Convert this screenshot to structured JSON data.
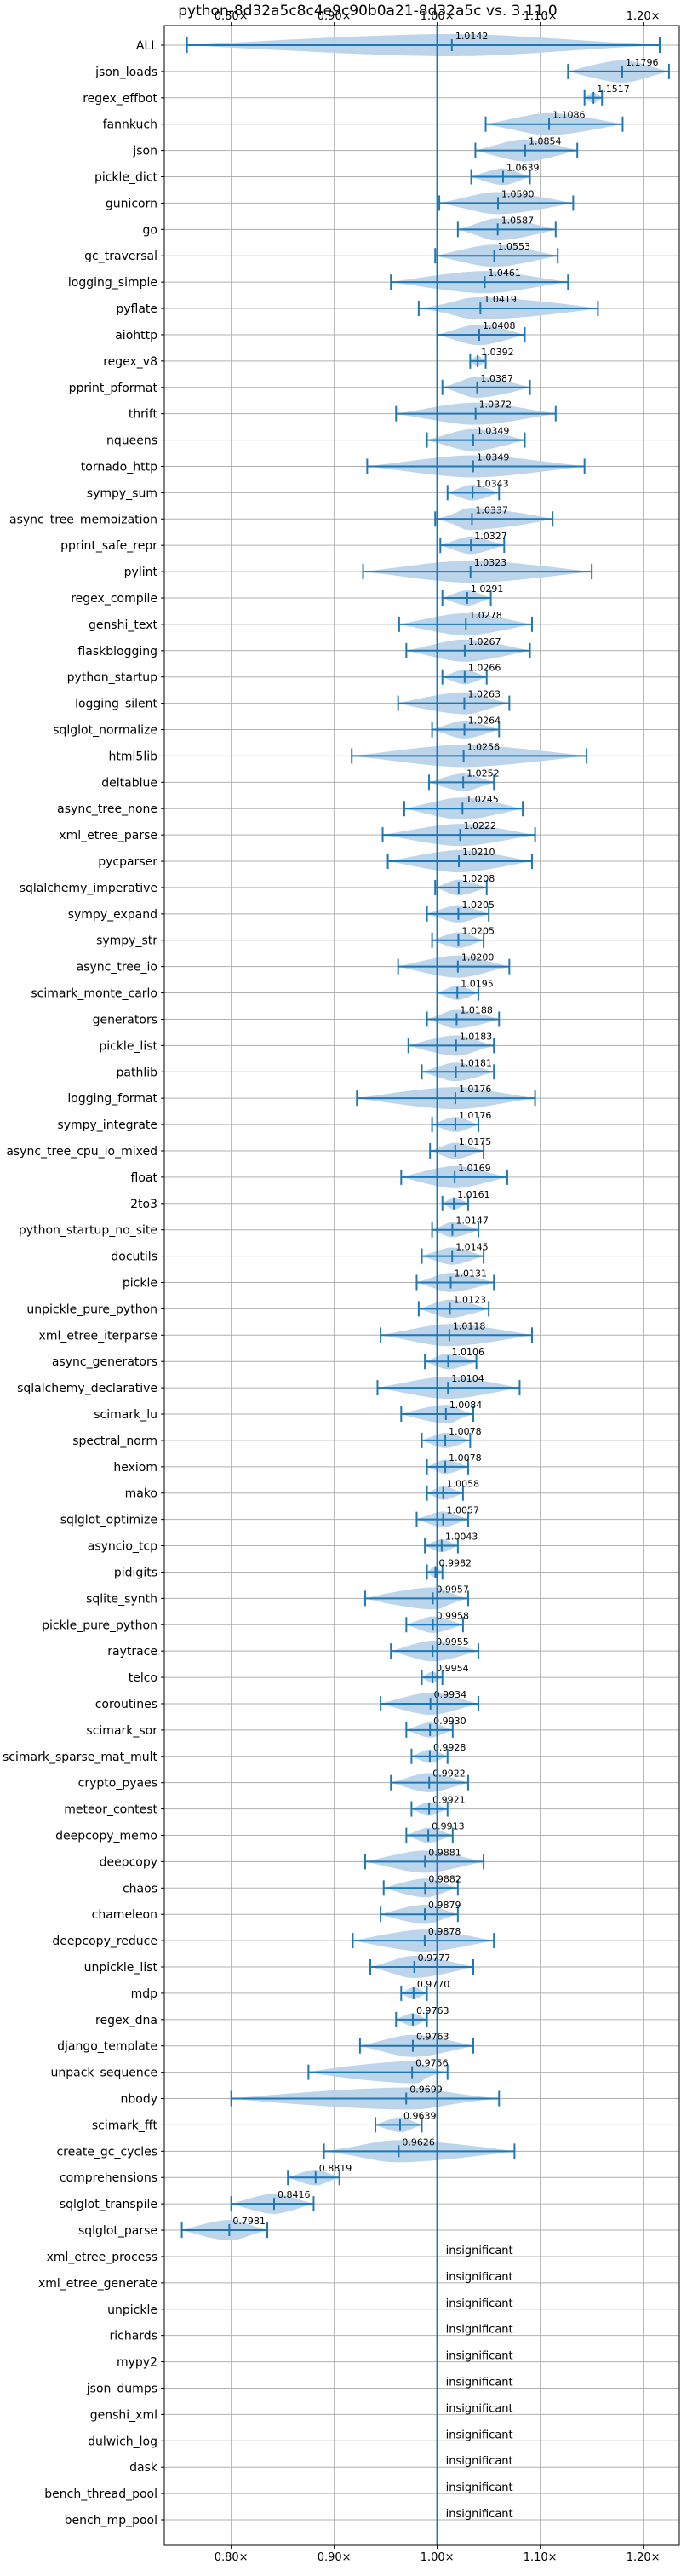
{
  "chart_data": {
    "type": "violin",
    "title": "python-8d32a5c8c4e9c90b0a21-8d32a5c vs. 3.11.0",
    "xlabel": "",
    "ylabel": "",
    "xlim": [
      0.735,
      1.235
    ],
    "x_ticks": [
      0.8,
      0.9,
      1.0,
      1.1,
      1.2
    ],
    "x_tick_labels": [
      "0.80×",
      "0.90×",
      "1.00×",
      "1.10×",
      "1.20×"
    ],
    "grid": true,
    "reference_line": 1.0,
    "colors": {
      "violin": "#b9d3ea",
      "whisker": "#1f77b4",
      "grid": "#b0b0b0",
      "text": "#000000"
    },
    "insignificant_label": "insignificant",
    "benchmarks": [
      {
        "name": "ALL",
        "mean": 1.0142,
        "min": 0.757,
        "max": 1.216,
        "label": "1.0142"
      },
      {
        "name": "json_loads",
        "mean": 1.1796,
        "min": 1.127,
        "max": 1.225,
        "label": "1.1796"
      },
      {
        "name": "regex_effbot",
        "mean": 1.1517,
        "min": 1.143,
        "max": 1.16,
        "label": "1.1517"
      },
      {
        "name": "fannkuch",
        "mean": 1.1086,
        "min": 1.047,
        "max": 1.18,
        "label": "1.1086"
      },
      {
        "name": "json",
        "mean": 1.0854,
        "min": 1.037,
        "max": 1.136,
        "label": "1.0854"
      },
      {
        "name": "pickle_dict",
        "mean": 1.0639,
        "min": 1.033,
        "max": 1.09,
        "label": "1.0639"
      },
      {
        "name": "gunicorn",
        "mean": 1.059,
        "min": 1.002,
        "max": 1.132,
        "label": "1.0590"
      },
      {
        "name": "go",
        "mean": 1.0587,
        "min": 1.02,
        "max": 1.115,
        "label": "1.0587"
      },
      {
        "name": "gc_traversal",
        "mean": 1.0553,
        "min": 0.998,
        "max": 1.117,
        "label": "1.0553"
      },
      {
        "name": "logging_simple",
        "mean": 1.0461,
        "min": 0.955,
        "max": 1.127,
        "label": "1.0461"
      },
      {
        "name": "pyflate",
        "mean": 1.0419,
        "min": 0.982,
        "max": 1.156,
        "label": "1.0419"
      },
      {
        "name": "aiohttp",
        "mean": 1.0408,
        "min": 1.0,
        "max": 1.085,
        "label": "1.0408"
      },
      {
        "name": "regex_v8",
        "mean": 1.0392,
        "min": 1.032,
        "max": 1.047,
        "label": "1.0392"
      },
      {
        "name": "pprint_pformat",
        "mean": 1.0387,
        "min": 1.005,
        "max": 1.09,
        "label": "1.0387"
      },
      {
        "name": "thrift",
        "mean": 1.0372,
        "min": 0.96,
        "max": 1.115,
        "label": "1.0372"
      },
      {
        "name": "nqueens",
        "mean": 1.0349,
        "min": 0.99,
        "max": 1.085,
        "label": "1.0349"
      },
      {
        "name": "tornado_http",
        "mean": 1.0349,
        "min": 0.932,
        "max": 1.143,
        "label": "1.0349"
      },
      {
        "name": "sympy_sum",
        "mean": 1.0343,
        "min": 1.01,
        "max": 1.06,
        "label": "1.0343"
      },
      {
        "name": "async_tree_memoization",
        "mean": 1.0337,
        "min": 0.998,
        "max": 1.112,
        "label": "1.0337"
      },
      {
        "name": "pprint_safe_repr",
        "mean": 1.0327,
        "min": 1.003,
        "max": 1.065,
        "label": "1.0327"
      },
      {
        "name": "pylint",
        "mean": 1.0323,
        "min": 0.928,
        "max": 1.15,
        "label": "1.0323"
      },
      {
        "name": "regex_compile",
        "mean": 1.0291,
        "min": 1.005,
        "max": 1.052,
        "label": "1.0291"
      },
      {
        "name": "genshi_text",
        "mean": 1.0278,
        "min": 0.963,
        "max": 1.092,
        "label": "1.0278"
      },
      {
        "name": "flaskblogging",
        "mean": 1.0267,
        "min": 0.97,
        "max": 1.09,
        "label": "1.0267"
      },
      {
        "name": "python_startup",
        "mean": 1.0266,
        "min": 1.005,
        "max": 1.048,
        "label": "1.0266"
      },
      {
        "name": "logging_silent",
        "mean": 1.0263,
        "min": 0.962,
        "max": 1.07,
        "label": "1.0263"
      },
      {
        "name": "sqlglot_normalize",
        "mean": 1.0264,
        "min": 0.995,
        "max": 1.06,
        "label": "1.0264"
      },
      {
        "name": "html5lib",
        "mean": 1.0256,
        "min": 0.917,
        "max": 1.145,
        "label": "1.0256"
      },
      {
        "name": "deltablue",
        "mean": 1.0252,
        "min": 0.992,
        "max": 1.055,
        "label": "1.0252"
      },
      {
        "name": "async_tree_none",
        "mean": 1.0245,
        "min": 0.968,
        "max": 1.083,
        "label": "1.0245"
      },
      {
        "name": "xml_etree_parse",
        "mean": 1.0222,
        "min": 0.947,
        "max": 1.095,
        "label": "1.0222"
      },
      {
        "name": "pycparser",
        "mean": 1.021,
        "min": 0.952,
        "max": 1.092,
        "label": "1.0210"
      },
      {
        "name": "sqlalchemy_imperative",
        "mean": 1.0208,
        "min": 0.998,
        "max": 1.048,
        "label": "1.0208"
      },
      {
        "name": "sympy_expand",
        "mean": 1.0205,
        "min": 0.99,
        "max": 1.05,
        "label": "1.0205"
      },
      {
        "name": "sympy_str",
        "mean": 1.0205,
        "min": 0.995,
        "max": 1.045,
        "label": "1.0205"
      },
      {
        "name": "async_tree_io",
        "mean": 1.02,
        "min": 0.962,
        "max": 1.07,
        "label": "1.0200"
      },
      {
        "name": "scimark_monte_carlo",
        "mean": 1.0195,
        "min": 1.0,
        "max": 1.04,
        "label": "1.0195"
      },
      {
        "name": "generators",
        "mean": 1.0188,
        "min": 0.99,
        "max": 1.06,
        "label": "1.0188"
      },
      {
        "name": "pickle_list",
        "mean": 1.0183,
        "min": 0.972,
        "max": 1.055,
        "label": "1.0183"
      },
      {
        "name": "pathlib",
        "mean": 1.0181,
        "min": 0.985,
        "max": 1.055,
        "label": "1.0181"
      },
      {
        "name": "logging_format",
        "mean": 1.0176,
        "min": 0.922,
        "max": 1.095,
        "label": "1.0176"
      },
      {
        "name": "sympy_integrate",
        "mean": 1.0176,
        "min": 0.995,
        "max": 1.04,
        "label": "1.0176"
      },
      {
        "name": "async_tree_cpu_io_mixed",
        "mean": 1.0175,
        "min": 0.993,
        "max": 1.045,
        "label": "1.0175"
      },
      {
        "name": "float",
        "mean": 1.0169,
        "min": 0.965,
        "max": 1.068,
        "label": "1.0169"
      },
      {
        "name": "2to3",
        "mean": 1.0161,
        "min": 1.005,
        "max": 1.03,
        "label": "1.0161"
      },
      {
        "name": "python_startup_no_site",
        "mean": 1.0147,
        "min": 0.995,
        "max": 1.04,
        "label": "1.0147"
      },
      {
        "name": "docutils",
        "mean": 1.0145,
        "min": 0.985,
        "max": 1.045,
        "label": "1.0145"
      },
      {
        "name": "pickle",
        "mean": 1.0131,
        "min": 0.98,
        "max": 1.055,
        "label": "1.0131"
      },
      {
        "name": "unpickle_pure_python",
        "mean": 1.0123,
        "min": 0.982,
        "max": 1.05,
        "label": "1.0123"
      },
      {
        "name": "xml_etree_iterparse",
        "mean": 1.0118,
        "min": 0.945,
        "max": 1.092,
        "label": "1.0118"
      },
      {
        "name": "async_generators",
        "mean": 1.0106,
        "min": 0.988,
        "max": 1.038,
        "label": "1.0106"
      },
      {
        "name": "sqlalchemy_declarative",
        "mean": 1.0104,
        "min": 0.942,
        "max": 1.08,
        "label": "1.0104"
      },
      {
        "name": "scimark_lu",
        "mean": 1.0084,
        "min": 0.965,
        "max": 1.035,
        "label": "1.0084"
      },
      {
        "name": "spectral_norm",
        "mean": 1.0078,
        "min": 0.985,
        "max": 1.032,
        "label": "1.0078"
      },
      {
        "name": "hexiom",
        "mean": 1.0078,
        "min": 0.99,
        "max": 1.03,
        "label": "1.0078"
      },
      {
        "name": "mako",
        "mean": 1.0058,
        "min": 0.99,
        "max": 1.025,
        "label": "1.0058"
      },
      {
        "name": "sqlglot_optimize",
        "mean": 1.0057,
        "min": 0.98,
        "max": 1.03,
        "label": "1.0057"
      },
      {
        "name": "asyncio_tcp",
        "mean": 1.0043,
        "min": 0.988,
        "max": 1.02,
        "label": "1.0043"
      },
      {
        "name": "pidigits",
        "mean": 0.9982,
        "min": 0.99,
        "max": 1.005,
        "label": "0.9982"
      },
      {
        "name": "sqlite_synth",
        "mean": 0.9957,
        "min": 0.93,
        "max": 1.03,
        "label": "0.9957"
      },
      {
        "name": "pickle_pure_python",
        "mean": 0.9958,
        "min": 0.97,
        "max": 1.025,
        "label": "0.9958"
      },
      {
        "name": "raytrace",
        "mean": 0.9955,
        "min": 0.955,
        "max": 1.04,
        "label": "0.9955"
      },
      {
        "name": "telco",
        "mean": 0.9954,
        "min": 0.985,
        "max": 1.005,
        "label": "0.9954"
      },
      {
        "name": "coroutines",
        "mean": 0.9934,
        "min": 0.945,
        "max": 1.04,
        "label": "0.9934"
      },
      {
        "name": "scimark_sor",
        "mean": 0.993,
        "min": 0.97,
        "max": 1.015,
        "label": "0.9930"
      },
      {
        "name": "scimark_sparse_mat_mult",
        "mean": 0.9928,
        "min": 0.975,
        "max": 1.01,
        "label": "0.9928"
      },
      {
        "name": "crypto_pyaes",
        "mean": 0.9922,
        "min": 0.955,
        "max": 1.03,
        "label": "0.9922"
      },
      {
        "name": "meteor_contest",
        "mean": 0.9921,
        "min": 0.975,
        "max": 1.01,
        "label": "0.9921"
      },
      {
        "name": "deepcopy_memo",
        "mean": 0.9913,
        "min": 0.97,
        "max": 1.015,
        "label": "0.9913"
      },
      {
        "name": "deepcopy",
        "mean": 0.9881,
        "min": 0.93,
        "max": 1.045,
        "label": "0.9881"
      },
      {
        "name": "chaos",
        "mean": 0.9882,
        "min": 0.948,
        "max": 1.02,
        "label": "0.9882"
      },
      {
        "name": "chameleon",
        "mean": 0.9879,
        "min": 0.945,
        "max": 1.02,
        "label": "0.9879"
      },
      {
        "name": "deepcopy_reduce",
        "mean": 0.9878,
        "min": 0.918,
        "max": 1.055,
        "label": "0.9878"
      },
      {
        "name": "unpickle_list",
        "mean": 0.9777,
        "min": 0.935,
        "max": 1.035,
        "label": "0.9777"
      },
      {
        "name": "mdp",
        "mean": 0.977,
        "min": 0.965,
        "max": 0.99,
        "label": "0.9770"
      },
      {
        "name": "regex_dna",
        "mean": 0.9763,
        "min": 0.96,
        "max": 0.99,
        "label": "0.9763"
      },
      {
        "name": "django_template",
        "mean": 0.9763,
        "min": 0.925,
        "max": 1.035,
        "label": "0.9763"
      },
      {
        "name": "unpack_sequence",
        "mean": 0.9756,
        "min": 0.875,
        "max": 1.01,
        "label": "0.9756"
      },
      {
        "name": "nbody",
        "mean": 0.9699,
        "min": 0.8,
        "max": 1.06,
        "label": "0.9699"
      },
      {
        "name": "scimark_fft",
        "mean": 0.9639,
        "min": 0.94,
        "max": 0.985,
        "label": "0.9639"
      },
      {
        "name": "create_gc_cycles",
        "mean": 0.9626,
        "min": 0.89,
        "max": 1.075,
        "label": "0.9626"
      },
      {
        "name": "comprehensions",
        "mean": 0.8819,
        "min": 0.855,
        "max": 0.905,
        "label": "0.8819"
      },
      {
        "name": "sqlglot_transpile",
        "mean": 0.8416,
        "min": 0.8,
        "max": 0.88,
        "label": "0.8416"
      },
      {
        "name": "sqlglot_parse",
        "mean": 0.7981,
        "min": 0.752,
        "max": 0.835,
        "label": "0.7981"
      },
      {
        "name": "xml_etree_process",
        "insignificant": true
      },
      {
        "name": "xml_etree_generate",
        "insignificant": true
      },
      {
        "name": "unpickle",
        "insignificant": true
      },
      {
        "name": "richards",
        "insignificant": true
      },
      {
        "name": "mypy2",
        "insignificant": true
      },
      {
        "name": "json_dumps",
        "insignificant": true
      },
      {
        "name": "genshi_xml",
        "insignificant": true
      },
      {
        "name": "dulwich_log",
        "insignificant": true
      },
      {
        "name": "dask",
        "insignificant": true
      },
      {
        "name": "bench_thread_pool",
        "insignificant": true
      },
      {
        "name": "bench_mp_pool",
        "insignificant": true
      }
    ]
  }
}
